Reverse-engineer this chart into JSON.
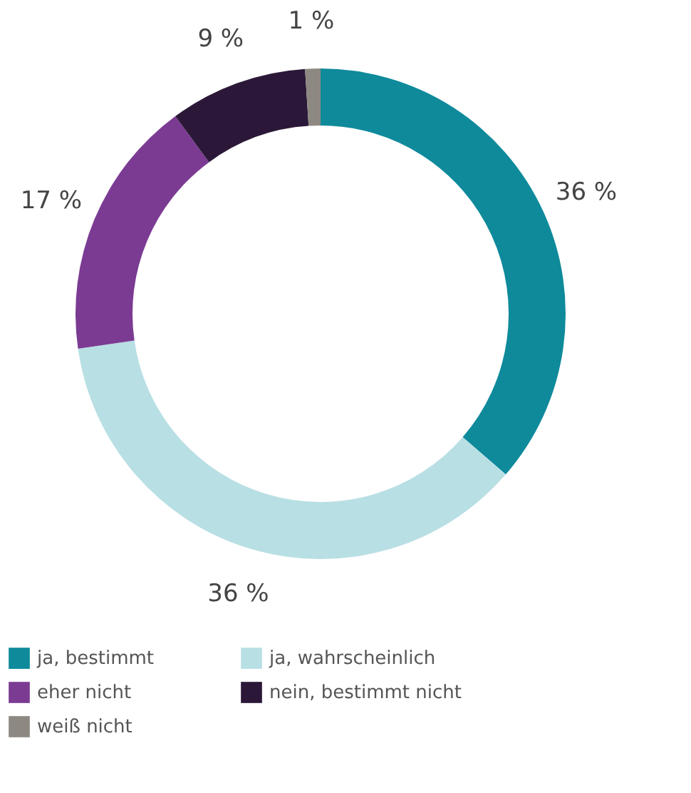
{
  "chart_data": {
    "type": "donut",
    "categories": [
      "ja, bestimmt",
      "ja, wahrscheinlich",
      "eher nicht",
      "nein, bestimmt nicht",
      "weiß nicht"
    ],
    "values": [
      36,
      36,
      17,
      9,
      1
    ],
    "colors": [
      "#0e8a9b",
      "#b8dfe4",
      "#7b3b93",
      "#2b1838",
      "#8e8882"
    ],
    "value_labels": [
      "36 %",
      "36 %",
      "17 %",
      "9 %",
      "1 %"
    ],
    "legend": "bottom"
  }
}
